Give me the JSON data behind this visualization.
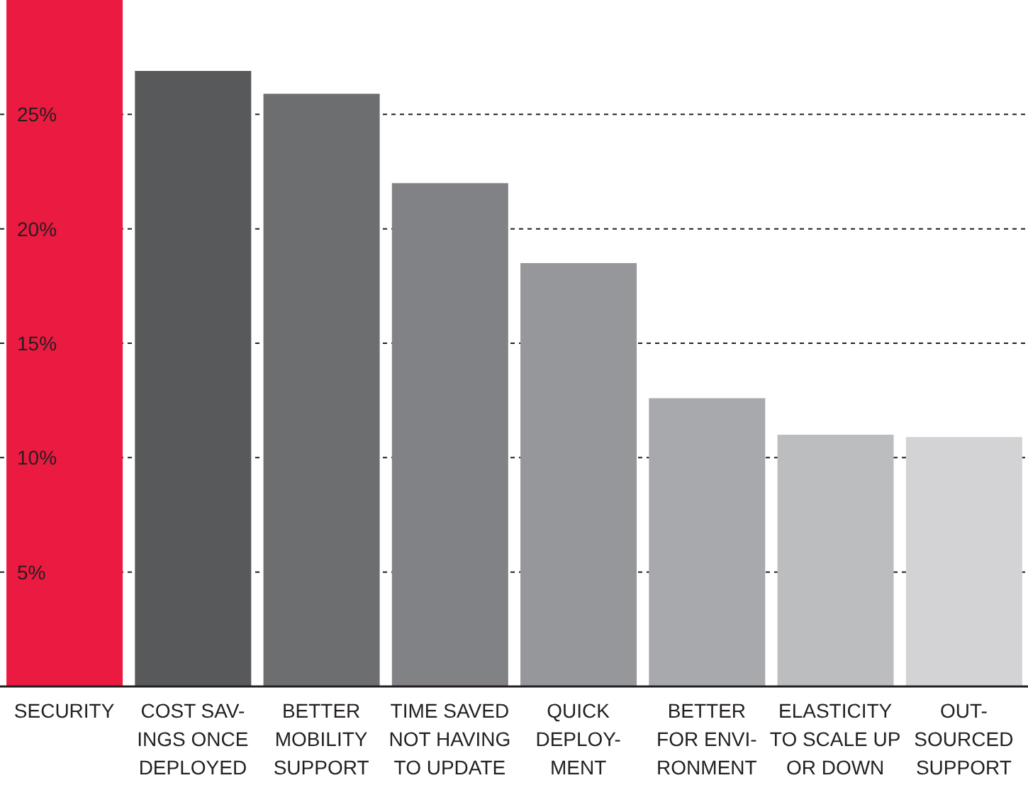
{
  "chart_data": {
    "type": "bar",
    "categories": [
      "SECURITY",
      "COST SAV-\nINGS ONCE\nDEPLOYED",
      "BETTER\nMOBILITY\nSUPPORT",
      "TIME SAVED\nNOT HAVING\nTO UPDATE",
      "QUICK\nDEPLOY-\nMENT",
      "BETTER\nFOR ENVI-\nRONMENT",
      "ELASTICITY\nTO SCALE UP\nOR DOWN",
      "OUT-\nSOURCED\nSUPPORT"
    ],
    "values": [
      30.0,
      26.9,
      25.9,
      22.0,
      18.5,
      12.6,
      11.0,
      10.9
    ],
    "colors": [
      "#ea1a40",
      "#58595b",
      "#6d6e70",
      "#818285",
      "#96979a",
      "#a8a9ac",
      "#bcbdbf",
      "#d3d3d5"
    ],
    "ylim": [
      0,
      30
    ],
    "yticks": [
      {
        "value": 5,
        "label": "5%"
      },
      {
        "value": 10,
        "label": "10%"
      },
      {
        "value": 15,
        "label": "15%"
      },
      {
        "value": 20,
        "label": "20%"
      },
      {
        "value": 25,
        "label": "25%"
      }
    ],
    "grid": "y"
  }
}
